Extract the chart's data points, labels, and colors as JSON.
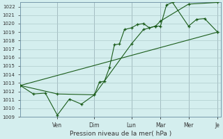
{
  "xlabel": "Pression niveau de la mer( hPa )",
  "bg_color": "#d4eeee",
  "grid_color": "#b0cccc",
  "line_color": "#1a5c1a",
  "ylim": [
    1009,
    1022.5
  ],
  "yticks": [
    1009,
    1010,
    1011,
    1012,
    1013,
    1014,
    1015,
    1016,
    1017,
    1018,
    1019,
    1020,
    1021,
    1022
  ],
  "xtick_labels": [
    "Ven",
    "Dim",
    "Lun",
    "Mar",
    "Mer",
    "Je"
  ],
  "xtick_pos": [
    0.185,
    0.37,
    0.555,
    0.7,
    0.84,
    0.985
  ],
  "vline_color": "#8899aa",
  "s1x": [
    0.0,
    0.065,
    0.125,
    0.185,
    0.245,
    0.305,
    0.37,
    0.395,
    0.42,
    0.445,
    0.47,
    0.495,
    0.52,
    0.555,
    0.585,
    0.615,
    0.645,
    0.675,
    0.7,
    0.73,
    0.76,
    0.84,
    0.88,
    0.92,
    0.985
  ],
  "s1y": [
    1012.7,
    1011.7,
    1011.8,
    1009.2,
    1011.1,
    1010.5,
    1011.6,
    1013.1,
    1013.2,
    1014.8,
    1017.5,
    1017.6,
    1019.3,
    1019.5,
    1019.9,
    1020.0,
    1019.5,
    1019.7,
    1019.7,
    1022.2,
    1022.5,
    1019.7,
    1020.5,
    1020.6,
    1019.0
  ],
  "s2x": [
    0.0,
    0.185,
    0.37,
    0.555,
    0.615,
    0.675,
    0.7,
    0.84,
    0.985
  ],
  "s2y": [
    1012.7,
    1011.7,
    1011.6,
    1017.6,
    1019.3,
    1019.7,
    1020.3,
    1022.3,
    1022.5
  ],
  "s3x": [
    0.0,
    0.985
  ],
  "s3y": [
    1012.7,
    1019.0
  ]
}
